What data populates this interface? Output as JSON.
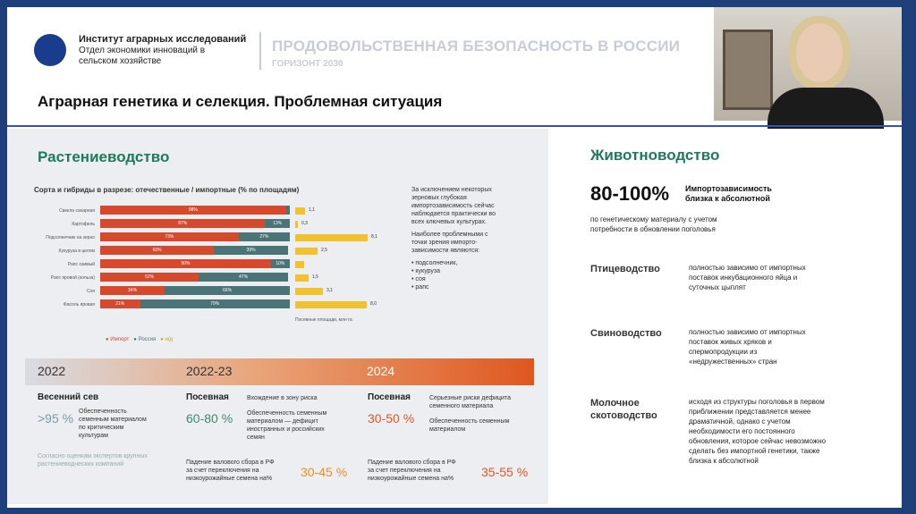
{
  "header": {
    "institute_line1": "Институт аграрных исследований",
    "institute_line2": "Отдел экономики инноваций в",
    "institute_line3": "сельском хозяйстве",
    "title": "ПРОДОВОЛЬСТВЕННАЯ БЕЗОПАСНОСТЬ В РОССИИ",
    "subtitle": "ГОРИЗОНТ 2030"
  },
  "slide_title": "Аграрная генетика и селекция. Проблемная ситуация",
  "left": {
    "section_title": "Растениеводство",
    "chart_title": "Сорта и гибриды в разрезе: отечественные / импортные (% по площадям)",
    "legend": {
      "import": "● Импорт",
      "russia": "● Россия",
      "na": "● н/д"
    },
    "sown_label": "Посевные площади, млн га",
    "notes": [
      "За исключением некоторых",
      "зерновых глубокая",
      "импортозависимость сейчас",
      "наблюдается практически во",
      "всех ключевых культурах.",
      "Наиболее проблемными с",
      "точки зрения импорто-",
      "зависимости являются:"
    ],
    "bullets": [
      "подсолнечник,",
      "кукуруза",
      "соя",
      "рапс"
    ],
    "timeline": {
      "y1": "2022",
      "y2": "2022-23",
      "y3": "2024"
    },
    "col1": {
      "heading": "Весенний сев",
      "value": ">95 %",
      "desc": [
        "Обеспеченность",
        "семенным материалом",
        "по критическим",
        "культурам"
      ],
      "footnote": [
        "Согласно оценкам экспертов крупных",
        "растениеводческих компаний"
      ]
    },
    "col2": {
      "heading": "Посевная",
      "value": "60-80 %",
      "risk": "Вхождение в зону риска",
      "desc": [
        "Обеспеченность семенным",
        "материалом — дефицит",
        "иностранных и российских",
        "семян"
      ],
      "drop": [
        "Падение валового сбора в РФ",
        "за счет переключения на",
        "низкоурожайные семена на%"
      ],
      "drop_value": "30-45 %"
    },
    "col3": {
      "heading": "Посевная",
      "value": "30-50 %",
      "risk": [
        "Серьезные риски дефицита",
        "семенного материала"
      ],
      "desc": [
        "Обеспеченность семенным",
        "материалом"
      ],
      "drop": [
        "Падение валового сбора в РФ",
        "за счет переключения на",
        "низкоурожайные семена на%"
      ],
      "drop_value": "35-55 %"
    }
  },
  "chart_data": {
    "type": "bar",
    "title": "Сорта и гибриды в разрезе: отечественные / импортные (% по площадям)",
    "categories": [
      "Свекла сахарная",
      "Картофель",
      "Подсолнечник на зерно",
      "Кукуруза в целом",
      "Рапс озимый",
      "Рапс яровой (кольза)",
      "Соя",
      "Фасоль яровая"
    ],
    "series": [
      {
        "name": "Импорт",
        "values": [
          98,
          87,
          73,
          60,
          90,
          52,
          34,
          21
        ]
      },
      {
        "name": "Россия",
        "values": [
          2,
          13,
          27,
          39,
          10,
          47,
          66,
          79
        ]
      }
    ],
    "labels": {
      "import": [
        "98%",
        "87%",
        "73%",
        "60%",
        "90%",
        "52%",
        "34%",
        "21%"
      ],
      "russia": [
        "",
        "13%",
        "27%",
        "39%",
        "10%",
        "47%",
        "66%",
        "79%"
      ]
    },
    "sown_area": {
      "name": "Посевные площади, млн га",
      "values": [
        1.1,
        0.3,
        8.1,
        2.5,
        1,
        1.5,
        3.1,
        8.0
      ],
      "labels": [
        "1,1",
        "0,3",
        "8,1",
        "2,5",
        "",
        "1,5",
        "3,1",
        "8,0"
      ]
    },
    "colors": {
      "import": "#d6492c",
      "russia": "#4a7476",
      "na": "#f2c12e"
    }
  },
  "right": {
    "section_title": "Животноводство",
    "big": "80-100%",
    "big_label": [
      "Импортозависимость",
      "близка к абсолютной"
    ],
    "big_desc": [
      "по генетическому материалу с учетом",
      "потребности в обновлении поголовья"
    ],
    "items": [
      {
        "cat": [
          "Птицеводство"
        ],
        "text": [
          "полностью зависимо от импортных",
          "поставок инкубационного яйца и",
          "суточных цыплят"
        ]
      },
      {
        "cat": [
          "Свиноводство"
        ],
        "text": [
          "полностью зависимо от импортных",
          "поставок живых хряков и",
          "спермопродукции из",
          "«недружественных» стран"
        ]
      },
      {
        "cat": [
          "Молочное",
          "скотоводство"
        ],
        "text": [
          "исходя из структуры поголовья в первом",
          "приближении представляется менее",
          "драматичной, однако с учетом",
          "необходимости его постоянного",
          "обновления, которое сейчас невозможно",
          "сделать без импортной генетики, также",
          "близка к абсолютной"
        ]
      }
    ]
  }
}
